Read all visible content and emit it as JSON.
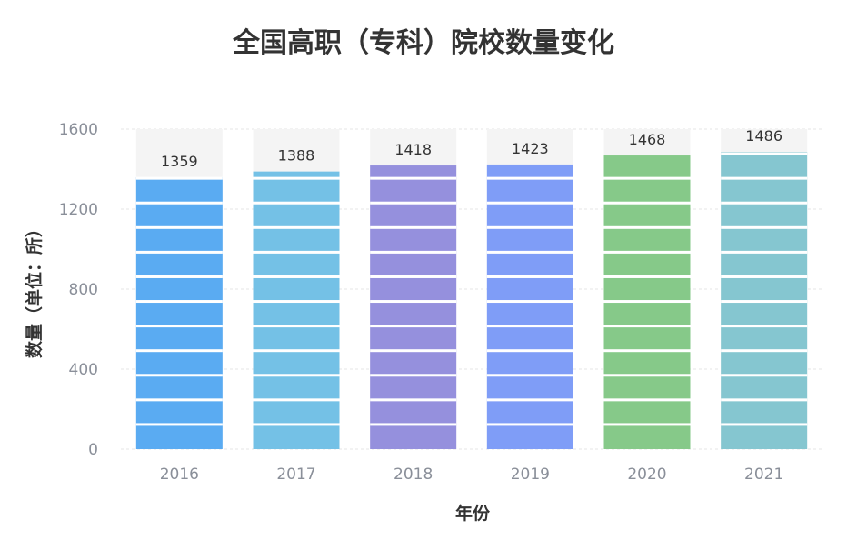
{
  "chart_data": {
    "type": "bar",
    "title": "全国高职（专科）院校数量变化",
    "xlabel": "年份",
    "ylabel": "数量（单位：所）",
    "categories": [
      "2016",
      "2017",
      "2018",
      "2019",
      "2020",
      "2021"
    ],
    "values": [
      1359,
      1388,
      1418,
      1423,
      1468,
      1486
    ],
    "ylim": [
      0,
      1600
    ],
    "yticks": [
      0,
      400,
      800,
      1200,
      1600
    ],
    "value_labels": [
      "1359",
      "1388",
      "1418",
      "1423",
      "1468",
      "1486"
    ],
    "colors": [
      "#5aabf2",
      "#74c1e6",
      "#9590dd",
      "#7f9df7",
      "#86c989",
      "#85c6d0"
    ],
    "background_bar_color": "#f4f4f4",
    "grid": true,
    "legend": "none"
  }
}
